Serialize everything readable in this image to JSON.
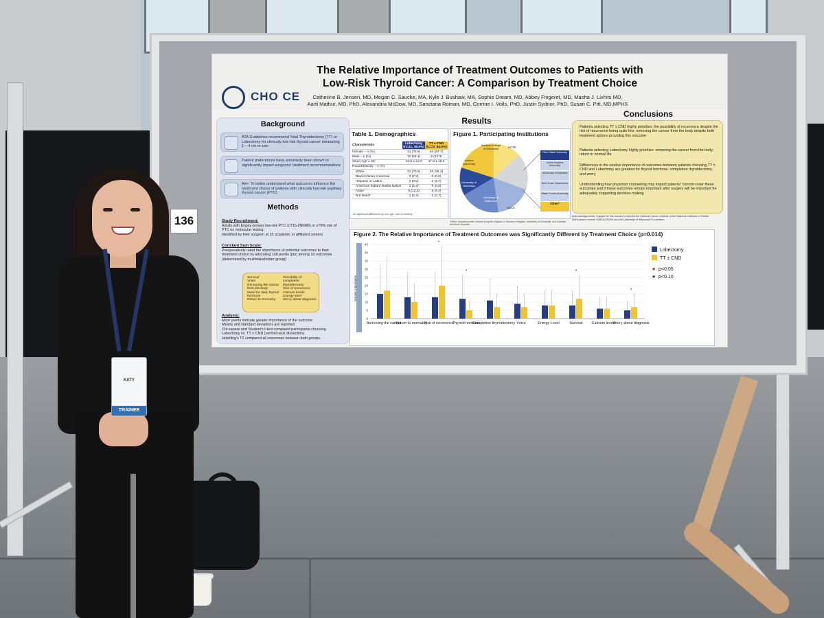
{
  "booth": {
    "number": "136"
  },
  "badge": {
    "name": "KATY",
    "role": "TRAINEE"
  },
  "poster": {
    "logo": {
      "text": "CHO CE"
    },
    "title_line1": "The Relative Importance of Treatment Outcomes to Patients with",
    "title_line2": "Low-Risk Thyroid Cancer: A Comparison by Treatment Choice",
    "authors_line1": "Catherine B. Jensen, MD, Megan C. Saucke, MA, Kyle J. Bushaw, MA, Sophie Dream, MD, Abbey Fingeret, MD, Masha J. Livhits MD,",
    "authors_line2": "Aarti Mathur, MD, PhD, Alexandria McDow, MD, Sanziana Roman, MD, Corrine I. Voils, PhD, Justin Sydnor, PhD, Susan C. Pitt, MD,MPHS",
    "background": {
      "heading": "Background",
      "items": [
        "ATA Guidelines recommend Total Thyroidectomy (TT) or Lobectomy for clinically low-risk thyroid cancer measuring 1 – 4 cm in size",
        "Patient preferences have previously been shown to significantly impact surgeons' treatment recommendations",
        "Aim: To better understand what outcomes influence the treatment choice of patients with clinically low-risk papillary thyroid cancer (PTC)"
      ]
    },
    "methods": {
      "heading": "Methods",
      "recruitment_h": "Study Recruitment:",
      "recruitment": [
        "Adults with biopsy-proven low-risk PTC (cT1b-2N0M0) or ≥70% risk of PTC on molecular testing",
        "Identified by their surgeon at 15 academic or affiliated centers"
      ],
      "scale_h": "Constant Sum Scale:",
      "scale": [
        "Preoperatively rated the importance of potential outcomes to their treatment choice by allocating 100 points (pts) among 10 outcomes (determined by multistakeholder group)"
      ],
      "outcomes_left": [
        "Survival",
        "Voice",
        "Removing the cancer from the body",
        "Need for daily thyroid hormone",
        "Return to normalcy"
      ],
      "outcomes_right": [
        "Possibility of completion thyroidectomy",
        "Risk of recurrence",
        "Calcium levels",
        "Energy level",
        "Worry about diagnosis"
      ],
      "analysis_h": "Analysis:",
      "analysis": [
        "More points indicate greater importance of the outcome",
        "Means and standard deviations are reported",
        "Chi-square and Student's t-test compared participants choosing Lobectomy vs. TT ± CND (central neck dissection)",
        "Hotelling's T2 compared all responses between both groups."
      ]
    },
    "results_heading": "Results",
    "table1": {
      "title": "Table 1. Demographics",
      "col_characteristic": "Characteristic",
      "col_lob": "Lobectomy",
      "col_lob_n": "(n=41, 36.0%)",
      "col_tt": "TT ± CND",
      "col_tt_n": "(n=73, 64.0%)",
      "rows": [
        [
          "Female – n (%)",
          "31 (75.6)",
          "64 (87.7)"
        ],
        [
          "Male – n (%)",
          "10 (24.4)",
          "9 (12.3)"
        ],
        [
          "Mean Age ± SD",
          "42.6 ± 13.0",
          "47.3 ± 15.4"
        ],
        [
          "Race/Ethnicity – n (%)",
          "",
          ""
        ],
        [
          "White",
          "31 (75.6)",
          "63 (86.3)"
        ],
        [
          "Black/African American",
          "3 (7.3)",
          "0 (0.0)"
        ],
        [
          "Hispanic or Latino",
          "0 (0.0)",
          "2 (2.7)"
        ],
        [
          "American Indian/ Alaska Native",
          "1 (2.4)",
          "0 (0.0)"
        ],
        [
          "Asian",
          "5 (12.2)",
          "6 (8.2)"
        ],
        [
          "Not listed*",
          "1 (2.4)",
          "2 (2.7)"
        ]
      ],
      "note": "No significant differences by sex, age, race or ethnicity"
    },
    "figure1": {
      "title": "Figure 1. Participating Institutions",
      "slices": [
        "Medical College of Wisconsin",
        "UCSF",
        "Indiana University",
        "University of Nebraska",
        "University of Wisconsin",
        "UCLA"
      ],
      "other_label": "Other*",
      "other_institutions": [
        "Ohio State University",
        "Johns Hopkins University",
        "University of Alabama",
        "Beth Israel Deaconess",
        "Wake Forest University"
      ],
      "footnote": "*Other: Massachusetts General Hospital, Brigham & Women's Hospital, University of Cincinnati, and Swedish American Hospital"
    },
    "conclusions": {
      "heading": "Conclusions",
      "items": [
        "Patients selecting TT ± CND highly prioritize: the possibility of recurrence despite the risk of recurrence being quite low; removing the cancer from the body despite both treatment options providing this outcome",
        "Patients selecting Lobectomy highly prioritize: removing the cancer from the body; return to normal life",
        "Differences in the relative importance of outcomes between patients choosing TT ± CND and Lobectomy are greatest for thyroid hormone, completion thyroidectomy, and worry",
        "Understanding how physician counseling may impact patients' concern over these outcomes and if these outcomes remain important after surgery will be important for adequately supporting decision-making"
      ]
    },
    "acknowledgements": "Acknowledgements: Support for this research included the National Cancer Institute of the National Institutes of Health (NIH) award number K08CA230204 and the University of Wisconsin Foundation."
  },
  "chart_data": {
    "type": "bar",
    "title": "Figure 2. The Relative Importance of Treatment Outcomes was Significantly Different by Treatment Choice (p=0.014)",
    "ylabel": "Greater Importance",
    "ylim": [
      0,
      45
    ],
    "yticks": [
      0,
      5,
      10,
      15,
      20,
      25,
      30,
      35,
      40,
      45
    ],
    "categories": [
      "Removing the cancer",
      "Return to normalcy",
      "Risk of recurrence",
      "Thyroid hormone",
      "Completion thyroidectomy",
      "Voice",
      "Energy Level",
      "Survival",
      "Calcium levels",
      "Worry about diagnosis"
    ],
    "series": [
      {
        "name": "Lobectomy",
        "color": "#253c86",
        "values": [
          15,
          13,
          13,
          12,
          11,
          9,
          8,
          8,
          6,
          5
        ]
      },
      {
        "name": "TT ± CND",
        "color": "#f1c32f",
        "values": [
          17,
          10,
          20,
          5,
          7,
          7,
          8,
          12,
          6,
          7
        ]
      }
    ],
    "significance": [
      "",
      "",
      "*",
      "*",
      "",
      "",
      "",
      "*",
      "",
      "*"
    ],
    "legend": {
      "placement": "top-right",
      "p05": "p<0.05",
      "p10": "p<0.10"
    }
  }
}
